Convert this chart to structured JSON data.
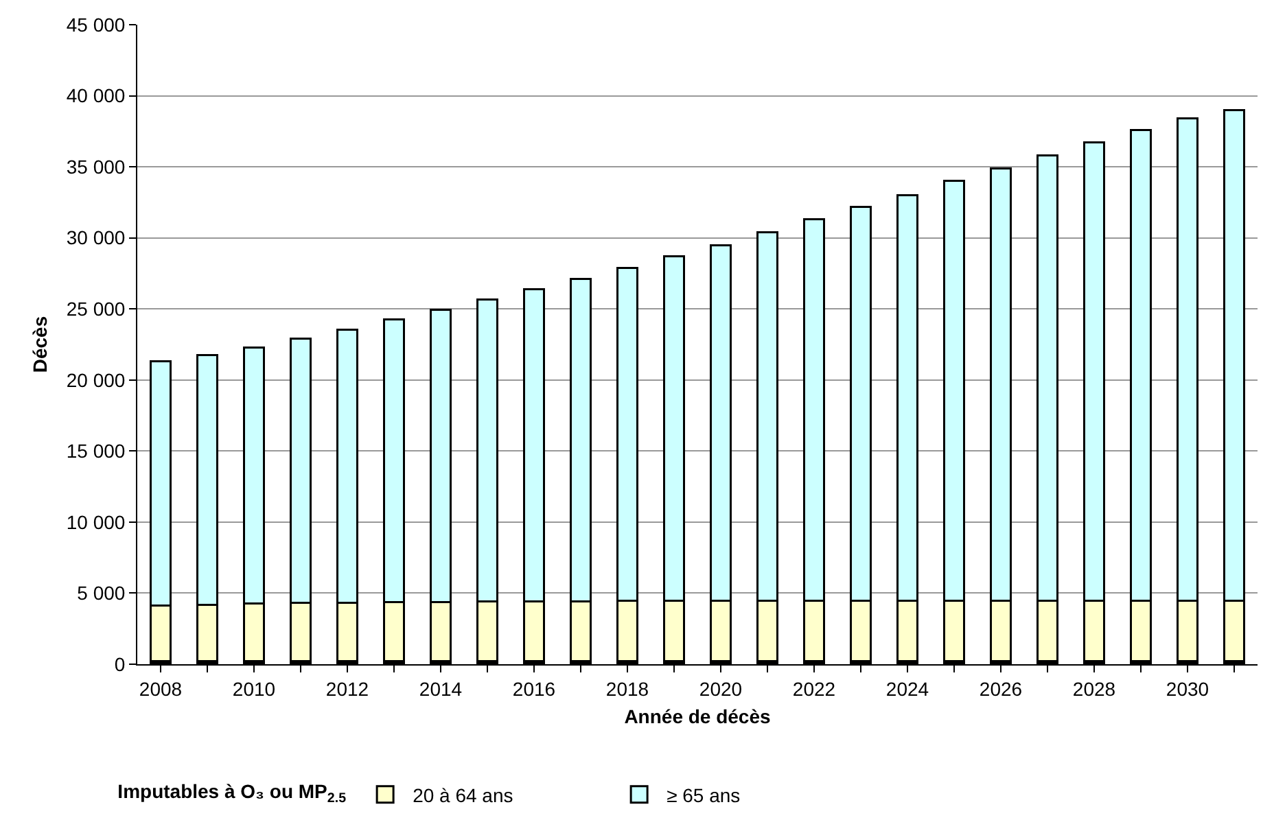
{
  "chart_data": {
    "type": "bar",
    "stacked": true,
    "xlabel": "Année de décès",
    "ylabel": "Décès",
    "legend_title": "Imputables à O₃ ou MP$_{2.5}$",
    "x": [
      2008,
      2009,
      2010,
      2011,
      2012,
      2013,
      2014,
      2015,
      2016,
      2017,
      2018,
      2019,
      2020,
      2021,
      2022,
      2023,
      2024,
      2025,
      2026,
      2027,
      2028,
      2029,
      2030,
      2031
    ],
    "series": [
      {
        "color": "#000000",
        "values": [
          200,
          200,
          200,
          200,
          200,
          200,
          200,
          200,
          200,
          200,
          200,
          200,
          200,
          200,
          200,
          200,
          200,
          200,
          200,
          200,
          200,
          200,
          200,
          200
        ]
      },
      {
        "name": "20 à 64 ans",
        "color": "#ffffcc",
        "values": [
          3950,
          4000,
          4050,
          4100,
          4130,
          4150,
          4180,
          4200,
          4220,
          4240,
          4250,
          4270,
          4270,
          4270,
          4270,
          4270,
          4270,
          4270,
          4270,
          4270,
          4270,
          4270,
          4270,
          4270
        ]
      },
      {
        "name": "≥ 65 ans",
        "color": "#ccffff",
        "values": [
          17150,
          17550,
          18050,
          18600,
          19220,
          19900,
          20570,
          21250,
          21980,
          22660,
          23450,
          24230,
          25030,
          25930,
          26830,
          27730,
          28530,
          29530,
          30430,
          31330,
          32230,
          33130,
          33930,
          34530
        ]
      }
    ],
    "xlim": [
      2007.5,
      2031.5
    ],
    "xticks": [
      2008,
      {
        "value": 2009,
        "label": null
      },
      2010,
      {
        "value": 2011,
        "label": null
      },
      2012,
      {
        "value": 2013,
        "label": null
      },
      2014,
      {
        "value": 2015,
        "label": null
      },
      2016,
      {
        "value": 2017,
        "label": null
      },
      2018,
      {
        "value": 2019,
        "label": null
      },
      2020,
      {
        "value": 2021,
        "label": null
      },
      2022,
      {
        "value": 2023,
        "label": null
      },
      2024,
      {
        "value": 2025,
        "label": null
      },
      2026,
      {
        "value": 2027,
        "label": null
      },
      2028,
      {
        "value": 2029,
        "label": null
      },
      2030,
      {
        "value": 2031,
        "label": null
      }
    ],
    "ylim": [
      0,
      45000
    ],
    "yticks": [
      0,
      {
        "value": 5000,
        "label": "5 000"
      },
      {
        "value": 10000,
        "label": "10 000"
      },
      {
        "value": 15000,
        "label": "15 000"
      },
      {
        "value": 20000,
        "label": "20 000"
      },
      {
        "value": 25000,
        "label": "25 000"
      },
      {
        "value": 30000,
        "label": "30 000"
      },
      {
        "value": 35000,
        "label": "35 000"
      },
      {
        "value": 40000,
        "label": "40 000"
      },
      {
        "value": 45000,
        "label": "45 000"
      }
    ],
    "grid": "y",
    "legend": "bottom"
  }
}
